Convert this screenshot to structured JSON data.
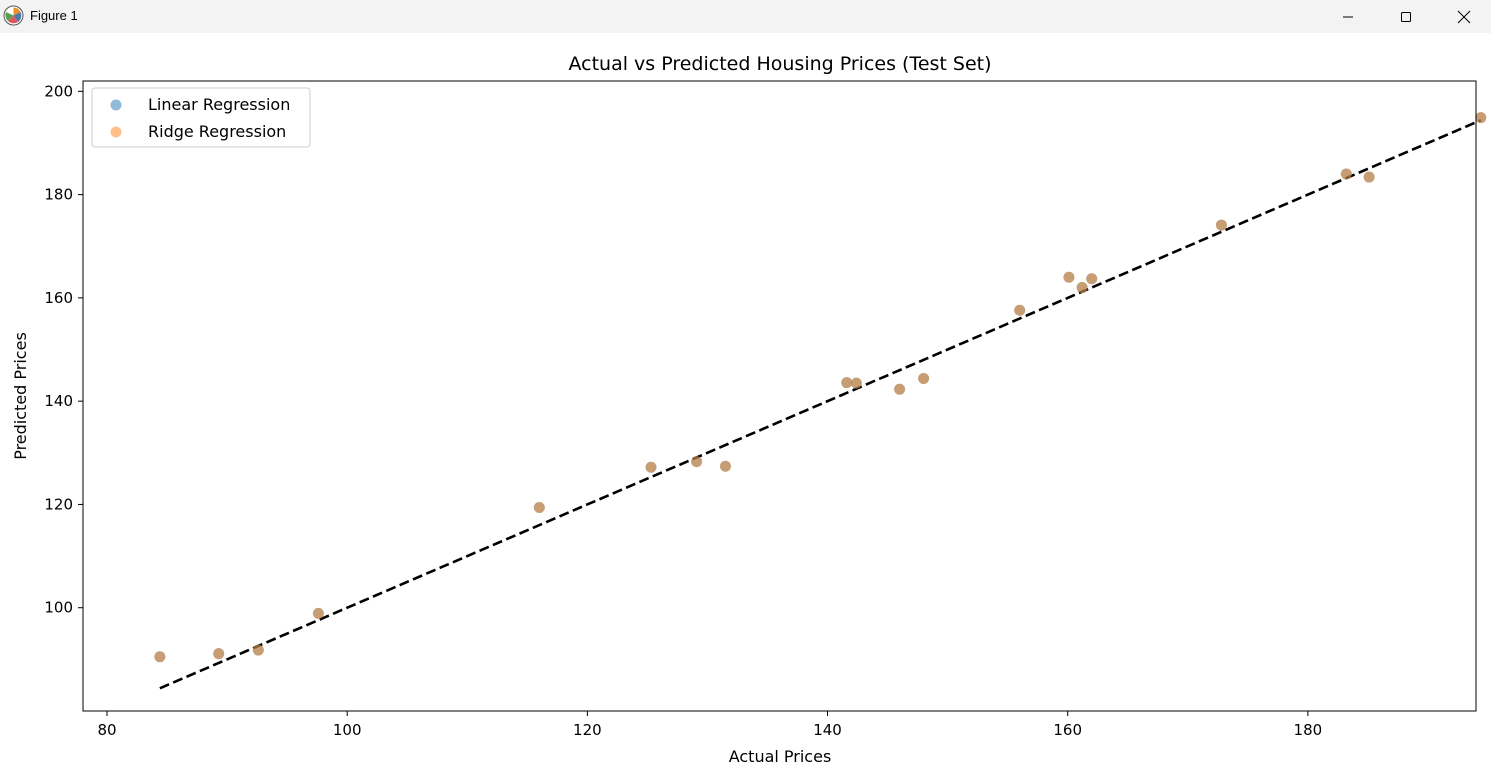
{
  "window": {
    "title": "Figure 1",
    "icons": [
      "matplotlib-logo-icon",
      "minimize-icon",
      "maximize-icon",
      "close-icon"
    ]
  },
  "chart_data": {
    "type": "scatter",
    "title": "Actual vs Predicted Housing Prices (Test Set)",
    "xlabel": "Actual Prices",
    "ylabel": "Predicted Prices",
    "xlim": [
      78,
      194
    ],
    "ylim": [
      80,
      202
    ],
    "xticks": [
      80,
      100,
      120,
      140,
      160,
      180
    ],
    "yticks": [
      100,
      120,
      140,
      160,
      180,
      200
    ],
    "grid": false,
    "legend_position": "upper-left",
    "series": [
      {
        "name": "Linear Regression",
        "color": "#1f77b4",
        "x": [
          84.4,
          89.3,
          92.6,
          97.6,
          116.0,
          125.3,
          129.1,
          131.5,
          141.6,
          142.4,
          146.0,
          148.0,
          156.0,
          160.1,
          161.2,
          162.0,
          172.8,
          183.2,
          185.1,
          194.4
        ],
        "y": [
          90.5,
          91.1,
          91.8,
          98.9,
          119.4,
          127.2,
          128.3,
          127.4,
          143.6,
          143.5,
          142.3,
          144.4,
          157.6,
          164.0,
          162.0,
          163.7,
          174.1,
          184.0,
          183.4,
          194.9
        ]
      },
      {
        "name": "Ridge Regression",
        "color": "#ff7f0e",
        "x": [
          84.4,
          89.3,
          92.6,
          97.6,
          116.0,
          125.3,
          129.1,
          131.5,
          141.6,
          142.4,
          146.0,
          148.0,
          156.0,
          160.1,
          161.2,
          162.0,
          172.8,
          183.2,
          185.1,
          194.4
        ],
        "y": [
          90.5,
          91.1,
          91.8,
          98.9,
          119.4,
          127.2,
          128.3,
          127.4,
          143.6,
          143.5,
          142.3,
          144.4,
          157.6,
          164.0,
          162.0,
          163.7,
          174.1,
          184.0,
          183.4,
          194.9
        ]
      }
    ],
    "reference_line": {
      "color": "#000000",
      "style": "dashed",
      "x": [
        84.4,
        194.4
      ],
      "y": [
        84.4,
        194.4
      ]
    }
  }
}
